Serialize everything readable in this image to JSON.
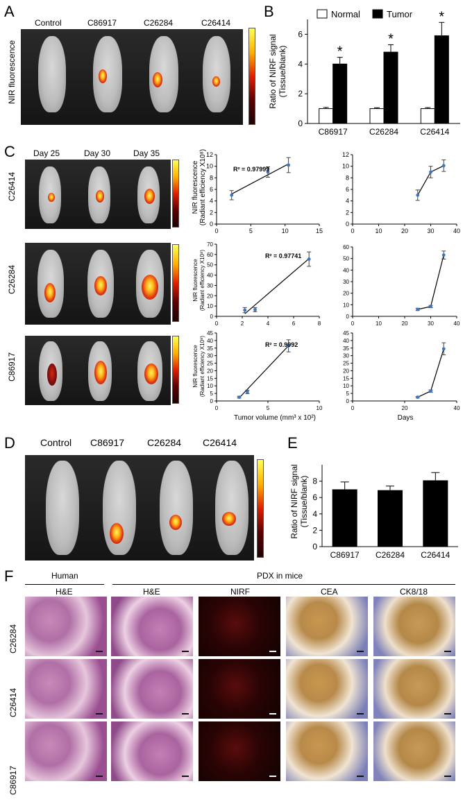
{
  "panels": {
    "A": {
      "letter": "A",
      "ylabel": "NIR fluorescence",
      "groups": [
        "Control",
        "C86917",
        "C26284",
        "C26414"
      ]
    },
    "B": {
      "letter": "B",
      "ylabel_1": "Ratio of NIRF signal",
      "ylabel_2": "(Tissue/blank)",
      "legend": [
        "Normal",
        "Tumor"
      ],
      "star": "*"
    },
    "C": {
      "letter": "C",
      "days": [
        "Day 25",
        "Day 30",
        "Day 35"
      ],
      "rows": [
        "C26414",
        "C26284",
        "C86917"
      ],
      "r2": [
        "R² = 0.97999",
        "R² = 0.97741",
        "R² = 0.9992"
      ],
      "ylabel_top_1": "NIR fluorescence",
      "ylabel_top_2": "(Radiant efficiency X10⁸)",
      "ylabel_mid_1": "NIR fluorescence",
      "ylabel_mid_2": "(Radiant efficiency X10⁸)",
      "ylabel_bot_1": "NIR fluorescence",
      "ylabel_bot_2": "(Radiant efficiency X10⁸)",
      "xlabel_left": "Tumor volume (mm³ x 10²)",
      "xlabel_right": "Days"
    },
    "D": {
      "letter": "D",
      "groups": [
        "Control",
        "C86917",
        "C26284",
        "C26414"
      ]
    },
    "E": {
      "letter": "E",
      "ylabel_1": "Ratio of NIRF signal",
      "ylabel_2": "(Tissue/blank)"
    },
    "F": {
      "letter": "F",
      "header_human": "Human",
      "header_pdx": "PDX in mice",
      "columns": [
        "H&E",
        "H&E",
        "NIRF",
        "CEA",
        "CK8/18"
      ],
      "rows": [
        "C26284",
        "C26414",
        "C86917"
      ]
    }
  },
  "chart_data": [
    {
      "id": "B",
      "type": "bar",
      "categories": [
        "C86917",
        "C26284",
        "C26414"
      ],
      "series": [
        {
          "name": "Normal",
          "values": [
            1.0,
            1.0,
            1.0
          ],
          "errors": [
            0.08,
            0.06,
            0.07
          ]
        },
        {
          "name": "Tumor",
          "values": [
            4.0,
            4.8,
            5.9
          ],
          "errors": [
            0.45,
            0.5,
            0.9
          ]
        }
      ],
      "ylim": [
        0,
        7
      ],
      "yticks": [
        "0",
        "2",
        "4",
        "6"
      ],
      "significance": [
        "*",
        "*",
        "*"
      ]
    },
    {
      "id": "C1L",
      "type": "scatter",
      "points": [
        [
          2.2,
          5.0
        ],
        [
          7.5,
          9.0
        ],
        [
          10.5,
          10.2
        ]
      ],
      "errors": [
        0.8,
        0.9,
        1.3
      ],
      "fit": [
        [
          2.2,
          5.2
        ],
        [
          10.5,
          10.4
        ]
      ],
      "annotation": "R² = 0.97999",
      "xlim": [
        0,
        15
      ],
      "ylim": [
        0,
        12
      ],
      "xticks": [
        "0",
        "5",
        "10",
        "15"
      ],
      "yticks": [
        "0",
        "2",
        "4",
        "6",
        "8",
        "10",
        "12"
      ]
    },
    {
      "id": "C1R",
      "type": "line",
      "points": [
        [
          25,
          5.0
        ],
        [
          30,
          9.0
        ],
        [
          35,
          10.1
        ]
      ],
      "errors": [
        0.9,
        1.0,
        1.0
      ],
      "xlim": [
        0,
        40
      ],
      "ylim": [
        0,
        12
      ],
      "xticks": [
        "0",
        "10",
        "20",
        "30",
        "40"
      ],
      "yticks": [
        "0",
        "2",
        "4",
        "6",
        "8",
        "10",
        "12"
      ]
    },
    {
      "id": "C2L",
      "type": "scatter",
      "points": [
        [
          2.2,
          6.0
        ],
        [
          3.0,
          6.5
        ],
        [
          7.2,
          55.5
        ]
      ],
      "errors": [
        2.5,
        2.0,
        7.0
      ],
      "fit": [
        [
          2.2,
          2.5
        ],
        [
          7.2,
          56.0
        ]
      ],
      "annotation": "R² = 0.97741",
      "xlim": [
        0,
        8
      ],
      "ylim": [
        0,
        70
      ],
      "xticks": [
        "0",
        "2",
        "4",
        "6",
        "8"
      ],
      "yticks": [
        "0",
        "10",
        "20",
        "30",
        "40",
        "50",
        "60",
        "70"
      ]
    },
    {
      "id": "C2R",
      "type": "line",
      "points": [
        [
          25,
          6.0
        ],
        [
          30,
          8.5
        ],
        [
          35,
          53.0
        ]
      ],
      "errors": [
        1.0,
        1.0,
        3.5
      ],
      "xlim": [
        0,
        40
      ],
      "ylim": [
        0,
        60
      ],
      "xticks": [
        "0",
        "10",
        "20",
        "30",
        "40"
      ],
      "yticks": [
        "0",
        "10",
        "20",
        "30",
        "40",
        "50",
        "60"
      ]
    },
    {
      "id": "C3L",
      "type": "scatter",
      "points": [
        [
          2.2,
          2.5
        ],
        [
          3.0,
          6.0
        ],
        [
          7.0,
          36.5
        ]
      ],
      "errors": [
        0.6,
        1.2,
        4.0
      ],
      "fit": [
        [
          2.2,
          2.0
        ],
        [
          7.0,
          36.5
        ]
      ],
      "annotation": "R² = 0.9992",
      "xlim": [
        0,
        10
      ],
      "ylim": [
        0,
        45
      ],
      "xticks": [
        "0",
        "5",
        "10"
      ],
      "yticks": [
        "0",
        "5",
        "10",
        "15",
        "20",
        "25",
        "30",
        "35",
        "40",
        "45"
      ]
    },
    {
      "id": "C3R",
      "type": "line",
      "points": [
        [
          25,
          2.5
        ],
        [
          30,
          6.5
        ],
        [
          35,
          34.5
        ]
      ],
      "errors": [
        0.5,
        0.8,
        4.0
      ],
      "xlim": [
        0,
        40
      ],
      "ylim": [
        0,
        45
      ],
      "xticks": [
        "0",
        "20",
        "40"
      ],
      "yticks": [
        "0",
        "5",
        "10",
        "15",
        "20",
        "25",
        "30",
        "35",
        "40",
        "45"
      ]
    },
    {
      "id": "E",
      "type": "bar",
      "categories": [
        "C86917",
        "C26284",
        "C26414"
      ],
      "values": [
        7.0,
        6.9,
        8.1
      ],
      "errors": [
        0.9,
        0.5,
        0.95
      ],
      "ylim": [
        0,
        10
      ],
      "yticks": [
        "0",
        "2",
        "4",
        "6",
        "8"
      ]
    }
  ]
}
